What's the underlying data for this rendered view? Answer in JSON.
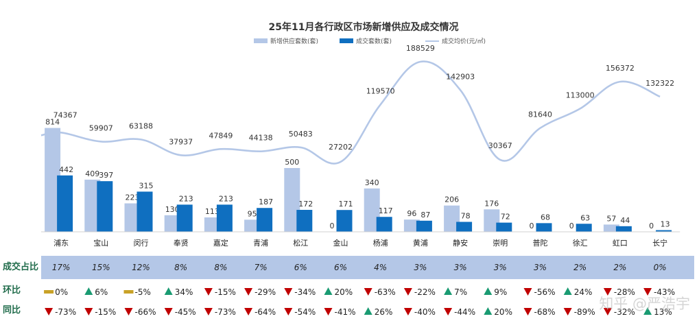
{
  "chart_data": {
    "type": "bar",
    "title": "25年11月各行政区市场新增供应及成交情况",
    "legend": {
      "placement": "top",
      "items": [
        {
          "name": "新增供应套数(套)",
          "kind": "bar",
          "color": "#b4c7e7"
        },
        {
          "name": "成交套数(套)",
          "kind": "bar",
          "color": "#0f6fc0"
        },
        {
          "name": "成交均价(元/㎡)",
          "kind": "line",
          "color": "#b4c7e7"
        }
      ]
    },
    "categories": [
      "浦东",
      "宝山",
      "闵行",
      "奉贤",
      "嘉定",
      "青浦",
      "松江",
      "金山",
      "杨浦",
      "黄浦",
      "静安",
      "崇明",
      "普陀",
      "徐汇",
      "虹口",
      "长宁"
    ],
    "series": [
      {
        "name": "新增供应套数(套)",
        "type": "bar",
        "color": "#b4c7e7",
        "values": [
          814,
          409,
          223,
          130,
          113,
          95,
          500,
          0,
          340,
          96,
          206,
          176,
          0,
          0,
          57,
          0
        ]
      },
      {
        "name": "成交套数(套)",
        "type": "bar",
        "color": "#0f6fc0",
        "values": [
          442,
          397,
          315,
          213,
          213,
          187,
          172,
          171,
          117,
          87,
          78,
          72,
          68,
          63,
          44,
          13
        ]
      },
      {
        "name": "成交均价(元/㎡)",
        "type": "line",
        "color": "#b4c7e7",
        "values": [
          74367,
          59907,
          63188,
          37937,
          47849,
          44138,
          50483,
          27202,
          119570,
          188529,
          142903,
          30367,
          81640,
          113000,
          156372,
          132322
        ]
      }
    ],
    "grid": false
  },
  "rows": {
    "share": {
      "label": "成交占比",
      "band_color": "#b4c7e7",
      "values": [
        "17%",
        "15%",
        "12%",
        "8%",
        "8%",
        "7%",
        "6%",
        "6%",
        "4%",
        "3%",
        "3%",
        "3%",
        "3%",
        "2%",
        "2%",
        "0%"
      ]
    },
    "mom": {
      "label": "环比",
      "values": [
        {
          "text": "0%",
          "dir": "flat"
        },
        {
          "text": "6%",
          "dir": "up"
        },
        {
          "text": "-5%",
          "dir": "flat"
        },
        {
          "text": "34%",
          "dir": "up"
        },
        {
          "text": "-15%",
          "dir": "down"
        },
        {
          "text": "-29%",
          "dir": "down"
        },
        {
          "text": "-34%",
          "dir": "down"
        },
        {
          "text": "20%",
          "dir": "up"
        },
        {
          "text": "-63%",
          "dir": "down"
        },
        {
          "text": "-22%",
          "dir": "down"
        },
        {
          "text": "7%",
          "dir": "up"
        },
        {
          "text": "9%",
          "dir": "up"
        },
        {
          "text": "-56%",
          "dir": "down"
        },
        {
          "text": "24%",
          "dir": "up"
        },
        {
          "text": "-28%",
          "dir": "down"
        },
        {
          "text": "-43%",
          "dir": "down"
        }
      ]
    },
    "yoy": {
      "label": "同比",
      "values": [
        {
          "text": "-73%",
          "dir": "down"
        },
        {
          "text": "-15%",
          "dir": "down"
        },
        {
          "text": "-66%",
          "dir": "down"
        },
        {
          "text": "-45%",
          "dir": "down"
        },
        {
          "text": "-73%",
          "dir": "down"
        },
        {
          "text": "-64%",
          "dir": "down"
        },
        {
          "text": "-54%",
          "dir": "down"
        },
        {
          "text": "-41%",
          "dir": "down"
        },
        {
          "text": "26%",
          "dir": "up"
        },
        {
          "text": "-40%",
          "dir": "down"
        },
        {
          "text": "-44%",
          "dir": "down"
        },
        {
          "text": "20%",
          "dir": "up"
        },
        {
          "text": "-68%",
          "dir": "down"
        },
        {
          "text": "-89%",
          "dir": "down"
        },
        {
          "text": "-32%",
          "dir": "down"
        },
        {
          "text": "13%",
          "dir": "up"
        }
      ]
    }
  },
  "colors": {
    "up": "#1a9b72",
    "down": "#c00000",
    "flat": "#c9a227"
  },
  "watermark": "知乎 @严浩宇"
}
